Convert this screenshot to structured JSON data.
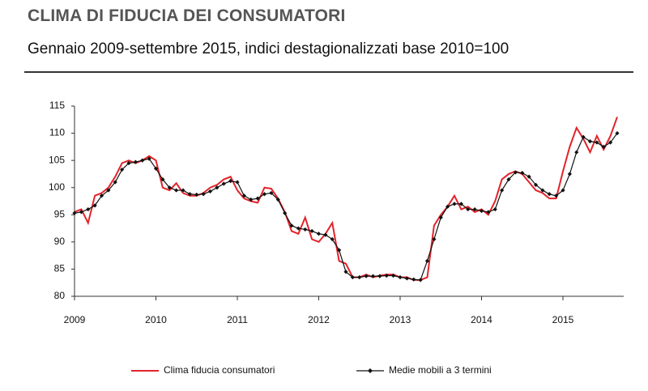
{
  "chart_data": {
    "type": "line",
    "title": "CLIMA DI FIDUCIA DEI CONSUMATORI",
    "subtitle": "Gennaio 2009-settembre 2015, indici destagionalizzati base 2010=100",
    "categories": [
      "2009",
      null,
      null,
      null,
      null,
      null,
      null,
      null,
      null,
      null,
      null,
      null,
      "2010",
      null,
      null,
      null,
      null,
      null,
      null,
      null,
      null,
      null,
      null,
      null,
      "2011",
      null,
      null,
      null,
      null,
      null,
      null,
      null,
      null,
      null,
      null,
      null,
      "2012",
      null,
      null,
      null,
      null,
      null,
      null,
      null,
      null,
      null,
      null,
      null,
      "2013",
      null,
      null,
      null,
      null,
      null,
      null,
      null,
      null,
      null,
      null,
      null,
      "2014",
      null,
      null,
      null,
      null,
      null,
      null,
      null,
      null,
      null,
      null,
      null,
      "2015",
      null,
      null,
      null,
      null,
      null,
      null,
      null,
      null
    ],
    "series": [
      {
        "name": "Clima fiducia consumatori",
        "color": "#e3232a",
        "marker": false,
        "values": [
          95.5,
          96,
          93.5,
          98.5,
          99,
          100,
          102,
          104.5,
          105,
          104.5,
          105,
          105.8,
          105,
          100,
          99.5,
          100.8,
          99,
          98.5,
          98.5,
          99,
          100,
          100.5,
          101.5,
          102,
          99.5,
          98,
          97.5,
          97.2,
          100,
          99.8,
          98,
          95.5,
          92,
          91.5,
          94.5,
          90.5,
          90,
          91.5,
          93.5,
          86.5,
          86,
          83.5,
          83.5,
          84,
          83.5,
          83.8,
          84,
          84,
          83.5,
          83.5,
          83,
          83,
          83.5,
          93,
          95,
          96.5,
          98.5,
          96,
          96.5,
          95.5,
          96,
          95,
          97.5,
          101.5,
          102.5,
          103,
          102.5,
          101,
          99.5,
          99,
          98,
          98,
          103,
          107.5,
          111,
          109,
          106.5,
          109.5,
          107,
          109.5,
          113
        ]
      },
      {
        "name": "Medie mobili a 3 termini",
        "color": "#111111",
        "marker": true,
        "values": [
          95.3,
          95.5,
          96,
          96.7,
          98.5,
          99.5,
          101,
          103.3,
          104.5,
          104.7,
          105,
          105.3,
          103.5,
          101.5,
          100,
          99.5,
          99.5,
          98.8,
          98.7,
          98.8,
          99.3,
          100,
          100.7,
          101.2,
          101,
          98.5,
          97.8,
          98,
          98.8,
          99,
          97.8,
          95.3,
          93,
          92.5,
          92.3,
          92,
          91.5,
          91.3,
          90.5,
          88.5,
          84.5,
          83.5,
          83.5,
          83.7,
          83.7,
          83.7,
          83.8,
          83.8,
          83.5,
          83.3,
          83.1,
          83,
          86.5,
          90.5,
          94.5,
          96.5,
          97,
          97,
          96,
          96,
          95.7,
          95.5,
          96,
          99.5,
          101.5,
          102.8,
          102.7,
          102,
          100.5,
          99.5,
          98.8,
          98.5,
          99.5,
          102.5,
          106.5,
          109.3,
          108.5,
          108.3,
          107.5,
          108.3,
          110
        ]
      }
    ],
    "ylim": [
      80,
      115
    ],
    "yticks": [
      80,
      85,
      90,
      95,
      100,
      105,
      110,
      115
    ],
    "grid": false
  }
}
